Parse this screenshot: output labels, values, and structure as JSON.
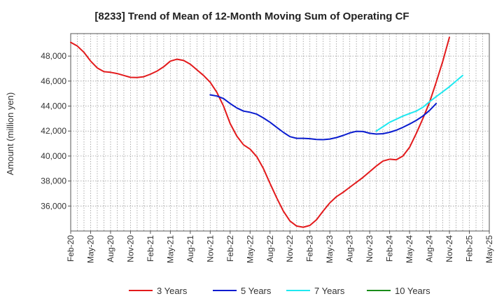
{
  "chart_data": {
    "type": "line",
    "title": "[8233]  Trend of Mean of 12-Month Moving Sum of Operating CF",
    "xlabel": "",
    "ylabel": "Amount (million yen)",
    "ylim": [
      34000,
      49800
    ],
    "yticks": [
      36000,
      38000,
      40000,
      42000,
      44000,
      46000,
      48000
    ],
    "ytick_labels": [
      "36,000",
      "38,000",
      "40,000",
      "42,000",
      "44,000",
      "46,000",
      "48,000"
    ],
    "x_start": "Feb-20",
    "x_end": "May-25",
    "xtick_labels": [
      "Feb-20",
      "May-20",
      "Aug-20",
      "Nov-20",
      "Feb-21",
      "May-21",
      "Aug-21",
      "Nov-21",
      "Feb-22",
      "May-22",
      "Aug-22",
      "Nov-22",
      "Feb-23",
      "May-23",
      "Aug-23",
      "Nov-23",
      "Feb-24",
      "May-24",
      "Aug-24",
      "Nov-24",
      "Feb-25",
      "May-25"
    ],
    "series": [
      {
        "name": "3 Years",
        "color": "#e31a1c",
        "start_index": 0,
        "values": [
          49100,
          48800,
          48300,
          47600,
          47050,
          46750,
          46700,
          46600,
          46450,
          46300,
          46280,
          46350,
          46550,
          46800,
          47150,
          47600,
          47750,
          47650,
          47350,
          46900,
          46450,
          45900,
          45100,
          44000,
          42600,
          41600,
          40900,
          40550,
          39950,
          39000,
          37800,
          36650,
          35600,
          34800,
          34400,
          34300,
          34450,
          34900,
          35600,
          36250,
          36750,
          37100,
          37500,
          37900,
          38300,
          38750,
          39200,
          39600,
          39750,
          39700,
          40000,
          40700,
          41800,
          43000,
          44300,
          45900,
          47600,
          49500
        ]
      },
      {
        "name": "5 Years",
        "color": "#0a1ccf",
        "start_index": 21,
        "values": [
          44900,
          44800,
          44600,
          44200,
          43850,
          43600,
          43500,
          43350,
          43050,
          42700,
          42300,
          41900,
          41550,
          41420,
          41420,
          41390,
          41330,
          41310,
          41360,
          41480,
          41650,
          41850,
          41980,
          41960,
          41820,
          41760,
          41790,
          41900,
          42070,
          42300,
          42560,
          42850,
          43200,
          43650,
          44200
        ]
      },
      {
        "name": "7 Years",
        "color": "#1fe8f0",
        "start_index": 46,
        "values": [
          42000,
          42350,
          42700,
          42950,
          43200,
          43400,
          43600,
          43900,
          44350,
          44750,
          45150,
          45550,
          46000,
          46450
        ]
      },
      {
        "name": "10 Years",
        "color": "#1a8c1a",
        "start_index": 0,
        "values": []
      }
    ],
    "grid": true,
    "legend_position": "bottom"
  }
}
